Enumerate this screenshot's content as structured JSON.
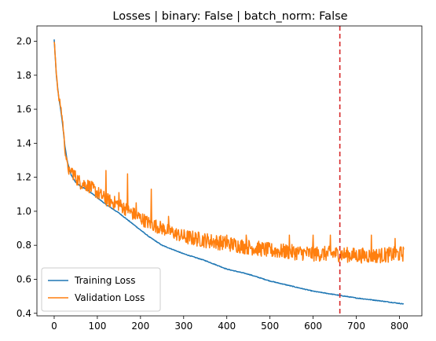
{
  "chart_data": {
    "type": "line",
    "title": "Losses | binary: False | batch_norm: False",
    "xlabel": "",
    "ylabel": "",
    "xlim": [
      -40,
      852
    ],
    "ylim": [
      0.385,
      2.09
    ],
    "x_ticks": [
      0,
      100,
      200,
      300,
      400,
      500,
      600,
      700,
      800
    ],
    "y_ticks": [
      0.4,
      0.6,
      0.8,
      1.0,
      1.2,
      1.4,
      1.6,
      1.8,
      2.0
    ],
    "grid": false,
    "legend_position": "lower-left",
    "vline": {
      "x": 662,
      "color": "#d62728",
      "style": "dashed"
    },
    "series": [
      {
        "name": "Training Loss",
        "color": "#1f77b4",
        "points": [
          [
            0,
            2.01
          ],
          [
            5,
            1.8
          ],
          [
            10,
            1.68
          ],
          [
            15,
            1.6
          ],
          [
            20,
            1.5
          ],
          [
            25,
            1.38
          ],
          [
            30,
            1.3
          ],
          [
            35,
            1.25
          ],
          [
            40,
            1.21
          ],
          [
            50,
            1.17
          ],
          [
            60,
            1.15
          ],
          [
            80,
            1.12
          ],
          [
            100,
            1.08
          ],
          [
            120,
            1.04
          ],
          [
            150,
            0.99
          ],
          [
            180,
            0.93
          ],
          [
            200,
            0.89
          ],
          [
            220,
            0.85
          ],
          [
            250,
            0.8
          ],
          [
            280,
            0.77
          ],
          [
            300,
            0.75
          ],
          [
            350,
            0.71
          ],
          [
            400,
            0.66
          ],
          [
            450,
            0.63
          ],
          [
            500,
            0.59
          ],
          [
            550,
            0.56
          ],
          [
            600,
            0.53
          ],
          [
            650,
            0.51
          ],
          [
            700,
            0.49
          ],
          [
            750,
            0.475
          ],
          [
            810,
            0.455
          ]
        ]
      },
      {
        "name": "Validation Loss",
        "color": "#ff7f0e",
        "points": [
          [
            0,
            2.0
          ],
          [
            5,
            1.82
          ],
          [
            10,
            1.67
          ],
          [
            15,
            1.62
          ],
          [
            20,
            1.52
          ],
          [
            25,
            1.36
          ],
          [
            30,
            1.28
          ],
          [
            35,
            1.22
          ],
          [
            40,
            1.24
          ],
          [
            50,
            1.2
          ],
          [
            60,
            1.17
          ],
          [
            80,
            1.15
          ],
          [
            100,
            1.11
          ],
          [
            120,
            1.07
          ],
          [
            150,
            1.04
          ],
          [
            180,
            0.99
          ],
          [
            200,
            0.96
          ],
          [
            220,
            0.93
          ],
          [
            250,
            0.9
          ],
          [
            280,
            0.87
          ],
          [
            300,
            0.85
          ],
          [
            350,
            0.83
          ],
          [
            400,
            0.81
          ],
          [
            450,
            0.79
          ],
          [
            500,
            0.77
          ],
          [
            550,
            0.76
          ],
          [
            600,
            0.75
          ],
          [
            650,
            0.75
          ],
          [
            700,
            0.74
          ],
          [
            750,
            0.74
          ],
          [
            810,
            0.75
          ]
        ],
        "spikes": [
          [
            35,
            1.26
          ],
          [
            120,
            1.24
          ],
          [
            150,
            1.11
          ],
          [
            170,
            1.22
          ],
          [
            190,
            1.05
          ],
          [
            225,
            1.13
          ],
          [
            265,
            0.97
          ],
          [
            400,
            0.86
          ],
          [
            445,
            0.86
          ],
          [
            545,
            0.86
          ],
          [
            600,
            0.86
          ],
          [
            640,
            0.86
          ],
          [
            735,
            0.86
          ],
          [
            790,
            0.84
          ]
        ]
      }
    ]
  }
}
